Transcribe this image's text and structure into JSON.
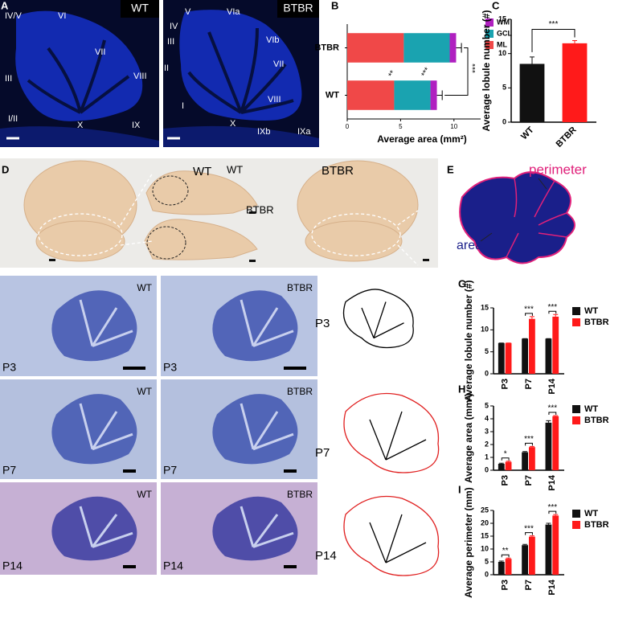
{
  "panel_labels": [
    "A",
    "B",
    "C",
    "D",
    "E",
    "F",
    "G",
    "H",
    "I"
  ],
  "panel_a": {
    "left": {
      "tag": "WT",
      "lobules": [
        "IV/V",
        "VI",
        "VII",
        "VIII",
        "III",
        "I/II",
        "X",
        "IX"
      ]
    },
    "right": {
      "tag": "BTBR",
      "lobules": [
        "V",
        "VIa",
        "IV",
        "III",
        "VIb",
        "II",
        "VII",
        "VIII",
        "I",
        "X",
        "IXb",
        "IXa"
      ]
    }
  },
  "panel_d": {
    "labels": [
      "WT",
      "WT",
      "BTBR",
      "BTBR"
    ]
  },
  "panel_e": {
    "perimeter": "perimeter",
    "area": "area"
  },
  "panel_f": {
    "wt": "WT",
    "btbr": "BTBR",
    "ages": [
      "P3",
      "P7",
      "P14"
    ]
  },
  "chart_data": [
    {
      "type": "bar",
      "orientation": "horizontal",
      "stacked": true,
      "xlabel": "Average area  (mm²)",
      "categories": [
        "BTBR",
        "WT"
      ],
      "xlim": [
        0,
        12.5
      ],
      "xticks": [
        0,
        5,
        10
      ],
      "series": [
        {
          "name": "ML",
          "color": "#f04848",
          "values": [
            5.3,
            4.4
          ]
        },
        {
          "name": "GCL",
          "color": "#1aa3b0",
          "values": [
            4.3,
            3.4
          ]
        },
        {
          "name": "WM",
          "color": "#b020c0",
          "values": [
            0.6,
            0.6
          ],
          "errors": [
            0.5,
            0.5
          ]
        }
      ],
      "annotations": [
        "**",
        "***",
        "***"
      ]
    },
    {
      "type": "bar",
      "ylabel": "Average lobule number (#)",
      "categories": [
        "WT",
        "BTBR"
      ],
      "values": [
        8.5,
        11.5
      ],
      "errors": [
        1.0,
        0.4
      ],
      "colors": [
        "#111111",
        "#ff1a1a"
      ],
      "ylim": [
        0,
        15
      ],
      "yticks": [
        0,
        5,
        10,
        15
      ],
      "annotations": [
        "***"
      ]
    },
    {
      "type": "bar",
      "ylabel": "Average lobule number (#)",
      "categories": [
        "P3",
        "P7",
        "P14"
      ],
      "series": [
        {
          "name": "WT",
          "color": "#111111",
          "values": [
            7,
            8,
            8
          ],
          "errors": [
            0,
            0,
            0
          ]
        },
        {
          "name": "BTBR",
          "color": "#ff1a1a",
          "values": [
            7,
            12.5,
            13
          ],
          "errors": [
            0,
            0.5,
            0.5
          ]
        }
      ],
      "ylim": [
        0,
        15
      ],
      "yticks": [
        0,
        5,
        10,
        15
      ],
      "annotations": [
        null,
        "***",
        "***"
      ]
    },
    {
      "type": "bar",
      "ylabel": "Average area (mm²)",
      "categories": [
        "P3",
        "P7",
        "P14"
      ],
      "series": [
        {
          "name": "WT",
          "color": "#111111",
          "values": [
            0.5,
            1.4,
            3.7
          ],
          "errors": [
            0.05,
            0.05,
            0.15
          ]
        },
        {
          "name": "BTBR",
          "color": "#ff1a1a",
          "values": [
            0.65,
            1.8,
            4.2
          ],
          "errors": [
            0.05,
            0.05,
            0.05
          ]
        }
      ],
      "ylim": [
        0,
        5
      ],
      "yticks": [
        0,
        1,
        2,
        3,
        4,
        5
      ],
      "annotations": [
        "*",
        "***",
        "***"
      ]
    },
    {
      "type": "bar",
      "ylabel": "Average perimeter (mm)",
      "categories": [
        "P3",
        "P7",
        "P14"
      ],
      "series": [
        {
          "name": "WT",
          "color": "#111111",
          "values": [
            5,
            11.5,
            19.5
          ],
          "errors": [
            0.3,
            0.3,
            0.5
          ]
        },
        {
          "name": "BTBR",
          "color": "#ff1a1a",
          "values": [
            6.2,
            14.8,
            23
          ],
          "errors": [
            0.3,
            0.3,
            0.4
          ]
        }
      ],
      "ylim": [
        0,
        25
      ],
      "yticks": [
        0,
        5,
        10,
        15,
        20,
        25
      ],
      "annotations": [
        "**",
        "***",
        "***"
      ]
    }
  ]
}
